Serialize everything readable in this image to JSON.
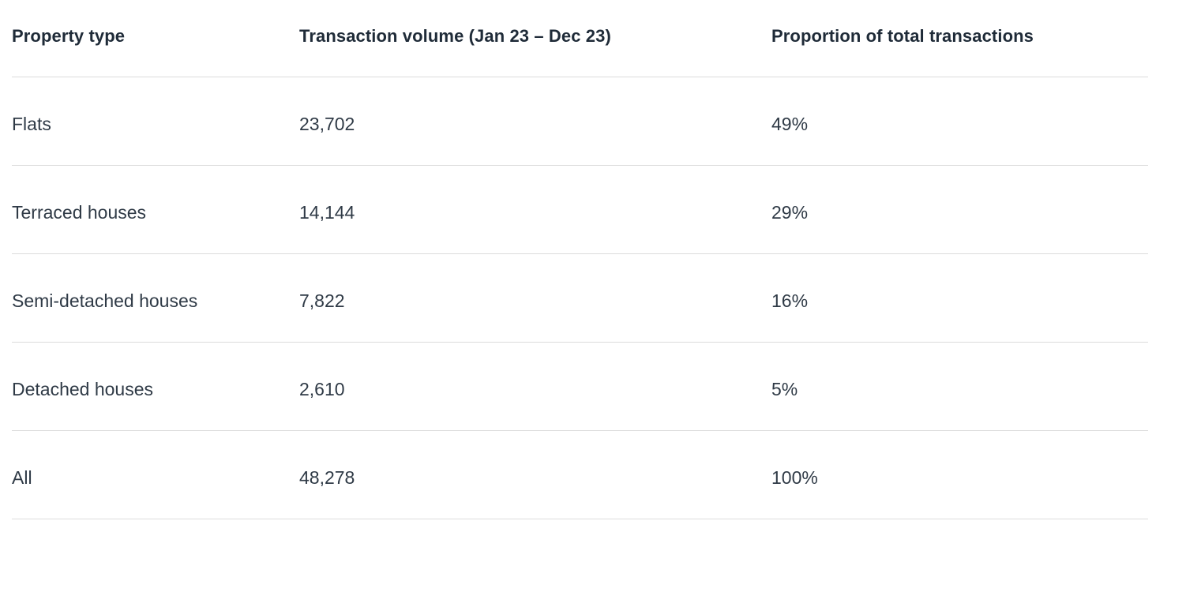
{
  "colors": {
    "background": "#ffffff",
    "header_text": "#1f2b38",
    "body_text": "#2f3a46",
    "divider": "#dcdcdc"
  },
  "table": {
    "columns": [
      "Property type",
      "Transaction volume (Jan 23 – Dec 23)",
      "Proportion of total transactions"
    ],
    "rows": [
      {
        "property_type": "Flats",
        "transaction_volume": "23,702",
        "proportion": "49%"
      },
      {
        "property_type": "Terraced houses",
        "transaction_volume": "14,144",
        "proportion": "29%"
      },
      {
        "property_type": "Semi-detached houses",
        "transaction_volume": "7,822",
        "proportion": "16%"
      },
      {
        "property_type": "Detached houses",
        "transaction_volume": "2,610",
        "proportion": "5%"
      },
      {
        "property_type": "All",
        "transaction_volume": "48,278",
        "proportion": "100%"
      }
    ]
  },
  "chart_data": {
    "type": "table",
    "title": "",
    "columns": [
      "Property type",
      "Transaction volume (Jan 23 – Dec 23)",
      "Proportion of total transactions"
    ],
    "rows": [
      [
        "Flats",
        "23,702",
        "49%"
      ],
      [
        "Terraced houses",
        "14,144",
        "29%"
      ],
      [
        "Semi-detached houses",
        "7,822",
        "16%"
      ],
      [
        "Detached houses",
        "2,610",
        "5%"
      ],
      [
        "All",
        "48,278",
        "100%"
      ]
    ],
    "numeric": {
      "categories": [
        "Flats",
        "Terraced houses",
        "Semi-detached houses",
        "Detached houses",
        "All"
      ],
      "transaction_volumes": [
        23702,
        14144,
        7822,
        2610,
        48278
      ],
      "proportions_percent": [
        49,
        29,
        16,
        5,
        100
      ]
    }
  }
}
